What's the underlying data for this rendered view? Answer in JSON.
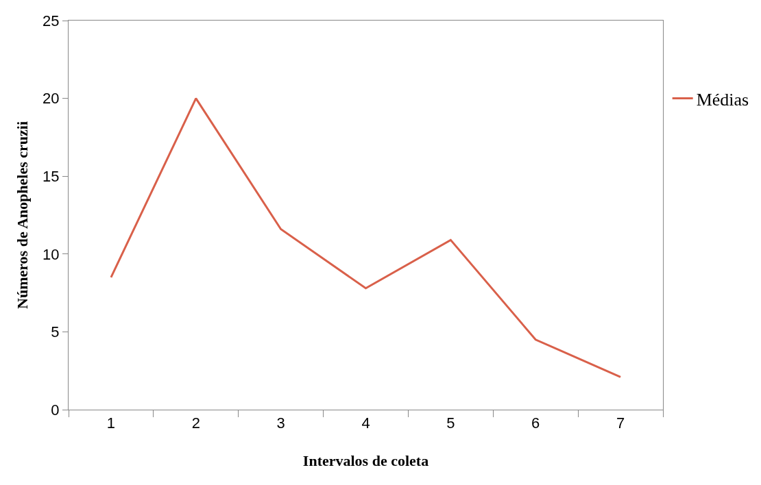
{
  "chart_data": {
    "type": "line",
    "xlabel": "Intervalos de coleta",
    "ylabel": "Números de Anopheles cruzii",
    "categories": [
      "1",
      "2",
      "3",
      "4",
      "5",
      "6",
      "7"
    ],
    "series": [
      {
        "name": "Médias",
        "color": "#d9604a",
        "values": [
          8.5,
          20.0,
          11.6,
          7.8,
          10.9,
          4.5,
          2.1
        ]
      }
    ],
    "ylim": [
      0,
      25
    ],
    "yticks": [
      0,
      5,
      10,
      15,
      20,
      25
    ],
    "legend": "right",
    "marker": "none",
    "line_style": "solid"
  }
}
